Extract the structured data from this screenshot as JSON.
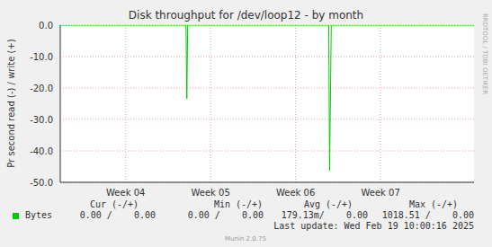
{
  "chart_data": {
    "type": "line",
    "title": "Disk throughput for /dev/loop12 - by month",
    "y_label": "Pr second read (-) / write (+)",
    "side_label": "RRDTOOL / TOBI OETIKER",
    "x": [
      3.23,
      4.71,
      4.72,
      4.73,
      6.39,
      6.4,
      6.42,
      8.1
    ],
    "series": [
      {
        "name": "Bytes",
        "color": "#00cc00",
        "values": [
          0,
          0,
          -23.4,
          0,
          0,
          -46.3,
          0,
          0
        ]
      }
    ],
    "xlim": [
      3.23,
      8.1
    ],
    "xticks": [
      {
        "value": 4,
        "label": "Week 04"
      },
      {
        "value": 5,
        "label": "Week 05"
      },
      {
        "value": 6,
        "label": "Week 06"
      },
      {
        "value": 7,
        "label": "Week 07"
      }
    ],
    "ylim": [
      -50,
      0
    ],
    "yticks": [
      {
        "value": -50,
        "label": "-50.0"
      },
      {
        "value": -40,
        "label": "-40.0"
      },
      {
        "value": -30,
        "label": "-30.0"
      },
      {
        "value": -20,
        "label": "-20.0"
      },
      {
        "value": -10,
        "label": "-10.0"
      },
      {
        "value": 0,
        "label": "0.0"
      }
    ],
    "grid": true,
    "legend_table": {
      "headers": [
        "Cur (-/+)",
        "Min (-/+)",
        "Avg (-/+)",
        "Max (-/+)"
      ],
      "rows": [
        {
          "label": "Bytes",
          "cells": [
            "0.00 /    0.00",
            "0.00 /    0.00",
            "179.13m/    0.00",
            "1018.51 /    0.00"
          ]
        }
      ]
    },
    "footer": "Last update: Wed Feb 19 10:00:16 2025",
    "version": "Munin 2.0.75"
  }
}
